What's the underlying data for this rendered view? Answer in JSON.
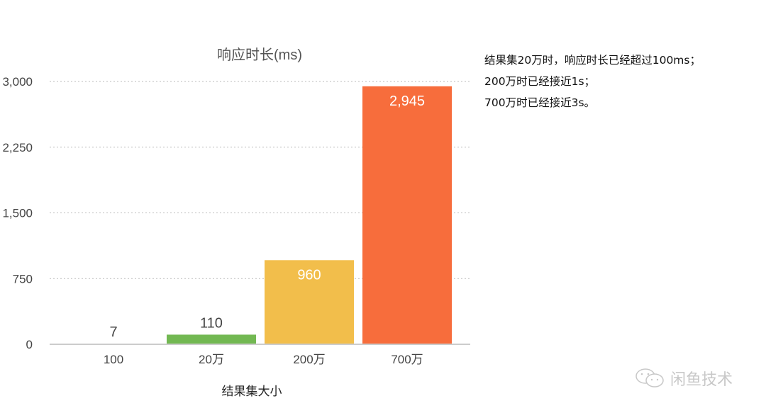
{
  "chart_data": {
    "type": "bar",
    "title": "响应时长(ms)",
    "xlabel": "结果集大小",
    "ylabel": "",
    "categories": [
      "100",
      "20万",
      "200万",
      "700万"
    ],
    "values": [
      7,
      110,
      960,
      2945
    ],
    "data_labels": [
      "7",
      "110",
      "960",
      "2,945"
    ],
    "colors": [
      "#9fb8d8",
      "#72b852",
      "#f2be4b",
      "#f76d3c"
    ],
    "ylim": [
      0,
      3000
    ],
    "yticks": [
      0,
      750,
      1500,
      2250,
      3000
    ],
    "ytick_labels": [
      "0",
      "750",
      "1,500",
      "2,250",
      "3,000"
    ],
    "grid": true,
    "legend": "none"
  },
  "notes": [
    "结果集20万时，响应时长已经超过100ms；",
    "200万时已经接近1s；",
    "700万时已经接近3s。"
  ],
  "watermark": {
    "text": "闲鱼技术",
    "icon": "wechat-icon"
  }
}
